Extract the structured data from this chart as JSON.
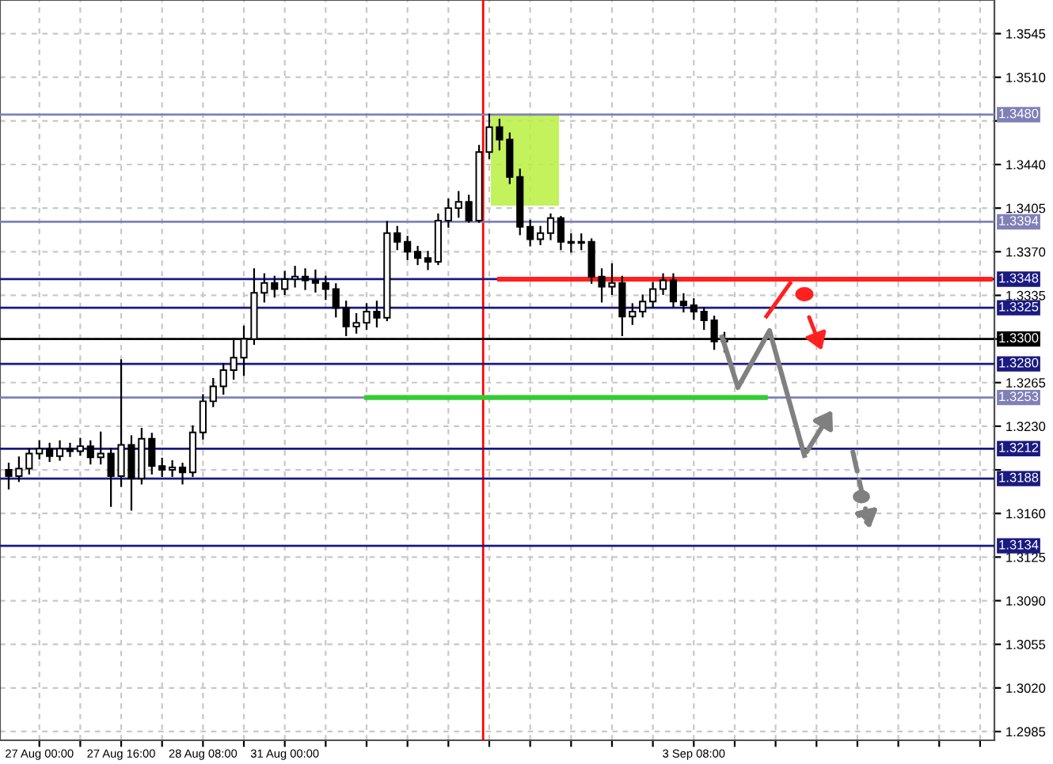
{
  "chart_data": {
    "type": "candlestick",
    "categories": [
      null,
      null,
      null,
      "27 Aug 00:00",
      null,
      null,
      null,
      null,
      null,
      null,
      null,
      "27 Aug 16:00",
      null,
      null,
      null,
      null,
      null,
      null,
      null,
      "28 Aug 08:00",
      null,
      null,
      null,
      null,
      null,
      null,
      null,
      "31 Aug 00:00",
      null,
      null,
      null,
      null,
      null,
      null,
      null,
      null,
      null,
      null,
      null,
      null,
      null,
      null,
      null,
      null,
      null,
      null,
      null,
      null,
      null,
      null,
      null,
      null,
      null,
      null,
      null,
      null,
      null,
      null,
      null,
      null,
      null,
      null,
      null,
      null,
      null,
      null,
      null,
      "3 Sep 08:00",
      null,
      null,
      null,
      null,
      null,
      null,
      null,
      null,
      null,
      null,
      null,
      null,
      null,
      null,
      null,
      null,
      null,
      null,
      null,
      null,
      null,
      null,
      null,
      null,
      null,
      null,
      null,
      null,
      null
    ],
    "ohlc": [
      [
        1.3195,
        1.32,
        1.318,
        1.319
      ],
      [
        1.319,
        1.3205,
        1.3186,
        1.3196
      ],
      [
        1.3196,
        1.3212,
        1.3192,
        1.3208
      ],
      [
        1.3208,
        1.3218,
        1.3204,
        1.3212
      ],
      [
        1.3212,
        1.3216,
        1.3202,
        1.3206
      ],
      [
        1.3206,
        1.3218,
        1.3203,
        1.3212
      ],
      [
        1.3212,
        1.3216,
        1.3206,
        1.321
      ],
      [
        1.321,
        1.322,
        1.3207,
        1.3214
      ],
      [
        1.3214,
        1.3218,
        1.32,
        1.3205
      ],
      [
        1.3205,
        1.3225,
        1.32,
        1.3208
      ],
      [
        1.3208,
        1.3212,
        1.3166,
        1.319
      ],
      [
        1.319,
        1.3283,
        1.3182,
        1.3215
      ],
      [
        1.3215,
        1.3222,
        1.3163,
        1.3188
      ],
      [
        1.3188,
        1.3228,
        1.3184,
        1.322
      ],
      [
        1.322,
        1.3224,
        1.3192,
        1.3198
      ],
      [
        1.3198,
        1.3204,
        1.319,
        1.3195
      ],
      [
        1.3195,
        1.3202,
        1.319,
        1.3197
      ],
      [
        1.3197,
        1.32,
        1.3184,
        1.3193
      ],
      [
        1.3193,
        1.323,
        1.319,
        1.3225
      ],
      [
        1.3225,
        1.3255,
        1.322,
        1.325
      ],
      [
        1.325,
        1.3268,
        1.3246,
        1.3262
      ],
      [
        1.3262,
        1.328,
        1.3256,
        1.3275
      ],
      [
        1.3275,
        1.33,
        1.3268,
        1.3285
      ],
      [
        1.3285,
        1.331,
        1.3271,
        1.33
      ],
      [
        1.33,
        1.3356,
        1.3296,
        1.3337
      ],
      [
        1.3337,
        1.3352,
        1.333,
        1.3345
      ],
      [
        1.3345,
        1.335,
        1.3334,
        1.334
      ],
      [
        1.334,
        1.3354,
        1.3336,
        1.3348
      ],
      [
        1.3348,
        1.3358,
        1.3342,
        1.335
      ],
      [
        1.335,
        1.3356,
        1.334,
        1.3347
      ],
      [
        1.3347,
        1.3355,
        1.3338,
        1.3345
      ],
      [
        1.3345,
        1.335,
        1.3332,
        1.334
      ],
      [
        1.334,
        1.3344,
        1.3318,
        1.3325
      ],
      [
        1.3325,
        1.333,
        1.3303,
        1.331
      ],
      [
        1.331,
        1.332,
        1.3305,
        1.3313
      ],
      [
        1.3313,
        1.3328,
        1.3308,
        1.3322
      ],
      [
        1.3322,
        1.333,
        1.331,
        1.3317
      ],
      [
        1.3317,
        1.3394,
        1.3315,
        1.3385
      ],
      [
        1.3385,
        1.339,
        1.3372,
        1.3378
      ],
      [
        1.3378,
        1.3382,
        1.3364,
        1.337
      ],
      [
        1.337,
        1.3374,
        1.336,
        1.3365
      ],
      [
        1.3365,
        1.337,
        1.3356,
        1.3362
      ],
      [
        1.3362,
        1.34,
        1.336,
        1.3395
      ],
      [
        1.3395,
        1.3412,
        1.339,
        1.3405
      ],
      [
        1.3405,
        1.3418,
        1.3398,
        1.341
      ],
      [
        1.341,
        1.3415,
        1.3394,
        1.3395
      ],
      [
        1.3395,
        1.3455,
        1.3394,
        1.345
      ],
      [
        1.345,
        1.348,
        1.3445,
        1.347
      ],
      [
        1.347,
        1.3476,
        1.3452,
        1.346
      ],
      [
        1.346,
        1.3465,
        1.3425,
        1.343
      ],
      [
        1.343,
        1.3436,
        1.3384,
        1.339
      ],
      [
        1.339,
        1.3395,
        1.3375,
        1.338
      ],
      [
        1.338,
        1.339,
        1.3376,
        1.3385
      ],
      [
        1.3385,
        1.34,
        1.338,
        1.3397
      ],
      [
        1.3397,
        1.3398,
        1.3372,
        1.3378
      ],
      [
        1.3378,
        1.3384,
        1.337,
        1.3377
      ],
      [
        1.3377,
        1.3384,
        1.3372,
        1.3378
      ],
      [
        1.3378,
        1.338,
        1.3345,
        1.335
      ],
      [
        1.335,
        1.3356,
        1.333,
        1.3342
      ],
      [
        1.3342,
        1.336,
        1.3336,
        1.3345
      ],
      [
        1.3345,
        1.335,
        1.3303,
        1.3318
      ],
      [
        1.3318,
        1.3328,
        1.3312,
        1.3322
      ],
      [
        1.3322,
        1.3335,
        1.3318,
        1.333
      ],
      [
        1.333,
        1.3345,
        1.3326,
        1.334
      ],
      [
        1.334,
        1.3352,
        1.3336,
        1.3347
      ],
      [
        1.3347,
        1.3352,
        1.3326,
        1.333
      ],
      [
        1.333,
        1.3336,
        1.3322,
        1.3327
      ],
      [
        1.3327,
        1.3332,
        1.3316,
        1.3322
      ],
      [
        1.3322,
        1.3325,
        1.3308,
        1.3315
      ],
      [
        1.3315,
        1.3318,
        1.3292,
        1.3298
      ],
      [
        1.3298,
        1.3305,
        1.329,
        1.33
      ],
      null,
      null,
      null,
      null,
      null,
      null,
      null,
      null,
      null,
      null,
      null,
      null,
      null,
      null,
      null,
      null,
      null,
      null,
      null,
      null,
      null,
      null,
      null,
      null,
      null,
      null
    ],
    "series": [
      {
        "type": "line",
        "color": "#ff2020",
        "values": [
          null,
          null,
          null,
          null,
          null,
          null,
          null,
          null,
          null,
          null,
          null,
          null,
          null,
          null,
          null,
          null,
          null,
          null,
          null,
          null,
          null,
          null,
          null,
          null,
          null,
          null,
          null,
          null,
          null,
          null,
          null,
          null,
          null,
          null,
          null,
          null,
          null,
          null,
          null,
          null,
          null,
          null,
          null,
          null,
          null,
          null,
          null,
          null,
          1.3348,
          1.3348,
          1.3348,
          1.3348,
          1.3348,
          1.3348,
          1.3348,
          1.3348,
          1.3348,
          1.3348,
          1.3348,
          1.3348,
          1.3348,
          1.3348,
          1.3348,
          1.3348,
          1.3348,
          1.3348,
          1.3348,
          1.3348,
          1.3348,
          1.3348,
          1.3348,
          1.3348,
          1.3348,
          1.3348,
          1.3348,
          1.3348,
          1.3348,
          1.3348,
          1.3348,
          1.3348,
          1.3348,
          1.3348,
          1.3348,
          1.3348,
          1.3348,
          1.3348,
          1.3348,
          1.3348,
          1.3348,
          1.3348,
          1.3348,
          1.3348,
          1.3348,
          1.3348,
          1.3348,
          1.3348,
          1.3348
        ]
      },
      {
        "type": "line",
        "color": "#33cc33",
        "values": [
          null,
          null,
          null,
          null,
          null,
          null,
          null,
          null,
          null,
          null,
          null,
          null,
          null,
          null,
          null,
          null,
          null,
          null,
          null,
          null,
          null,
          null,
          null,
          null,
          null,
          null,
          null,
          null,
          null,
          null,
          null,
          null,
          null,
          null,
          null,
          1.3253,
          1.3253,
          1.3253,
          1.3253,
          1.3253,
          1.3253,
          1.3253,
          1.3253,
          1.3253,
          1.3253,
          1.3253,
          1.3253,
          1.3253,
          1.3253,
          1.3253,
          1.3253,
          1.3253,
          1.3253,
          1.3253,
          1.3253,
          1.3253,
          1.3253,
          1.3253,
          1.3253,
          1.3253,
          1.3253,
          1.3253,
          1.3253,
          1.3253,
          1.3253,
          1.3253,
          1.3253,
          1.3253,
          1.3253,
          1.3253,
          1.3253,
          1.3253,
          1.3253,
          1.3253,
          1.3253,
          null,
          null,
          null,
          null,
          null,
          null,
          null,
          null,
          null,
          null,
          null,
          null,
          null,
          null,
          null,
          null,
          null,
          null,
          null,
          null,
          null,
          null
        ]
      }
    ],
    "ylim": [
      1.2978,
      1.3572
    ],
    "yticks": [
      1.2985,
      {
        "value": 1.302,
        "label": "1.3020"
      },
      1.3055,
      {
        "value": 1.309,
        "label": "1.3090"
      },
      1.3125,
      {
        "value": 1.316,
        "label": "1.3160"
      },
      {
        "value": 1.3195,
        "label": null
      },
      {
        "value": 1.323,
        "label": "1.3230"
      },
      1.3265,
      {
        "value": 1.33,
        "label": null
      },
      1.3335,
      {
        "value": 1.337,
        "label": "1.3370"
      },
      1.3405,
      {
        "value": 1.344,
        "label": "1.3440"
      },
      {
        "value": 1.3475,
        "label": null
      },
      {
        "value": 1.351,
        "label": "1.3510"
      },
      1.3545
    ],
    "grid": true,
    "ref_lines": [
      {
        "axis": "y",
        "value": 1.348,
        "label": "1.3480",
        "color": "#8080b8"
      },
      {
        "axis": "y",
        "value": 1.3394,
        "label": "1.3394",
        "color": "#8080b8"
      },
      {
        "axis": "y",
        "value": 1.3348,
        "label": "1.3348",
        "color": "#1a1a80"
      },
      {
        "axis": "y",
        "value": 1.3325,
        "label": "1.3325",
        "color": "#1a1a80"
      },
      {
        "axis": "y",
        "value": 1.33,
        "label": "1.3300",
        "color": "#000000"
      },
      {
        "axis": "y",
        "value": 1.328,
        "label": "1.3280",
        "color": "#1a1a80"
      },
      {
        "axis": "y",
        "value": 1.3253,
        "label": "1.3253",
        "color": "#8080b8"
      },
      {
        "axis": "y",
        "value": 1.3212,
        "label": "1.3212",
        "color": "#1a1a80"
      },
      {
        "axis": "y",
        "value": 1.3188,
        "label": "1.3188",
        "color": "#1a1a80"
      },
      {
        "axis": "y",
        "value": 1.3134,
        "label": "1.3134",
        "color": "#1a1a80"
      }
    ]
  }
}
